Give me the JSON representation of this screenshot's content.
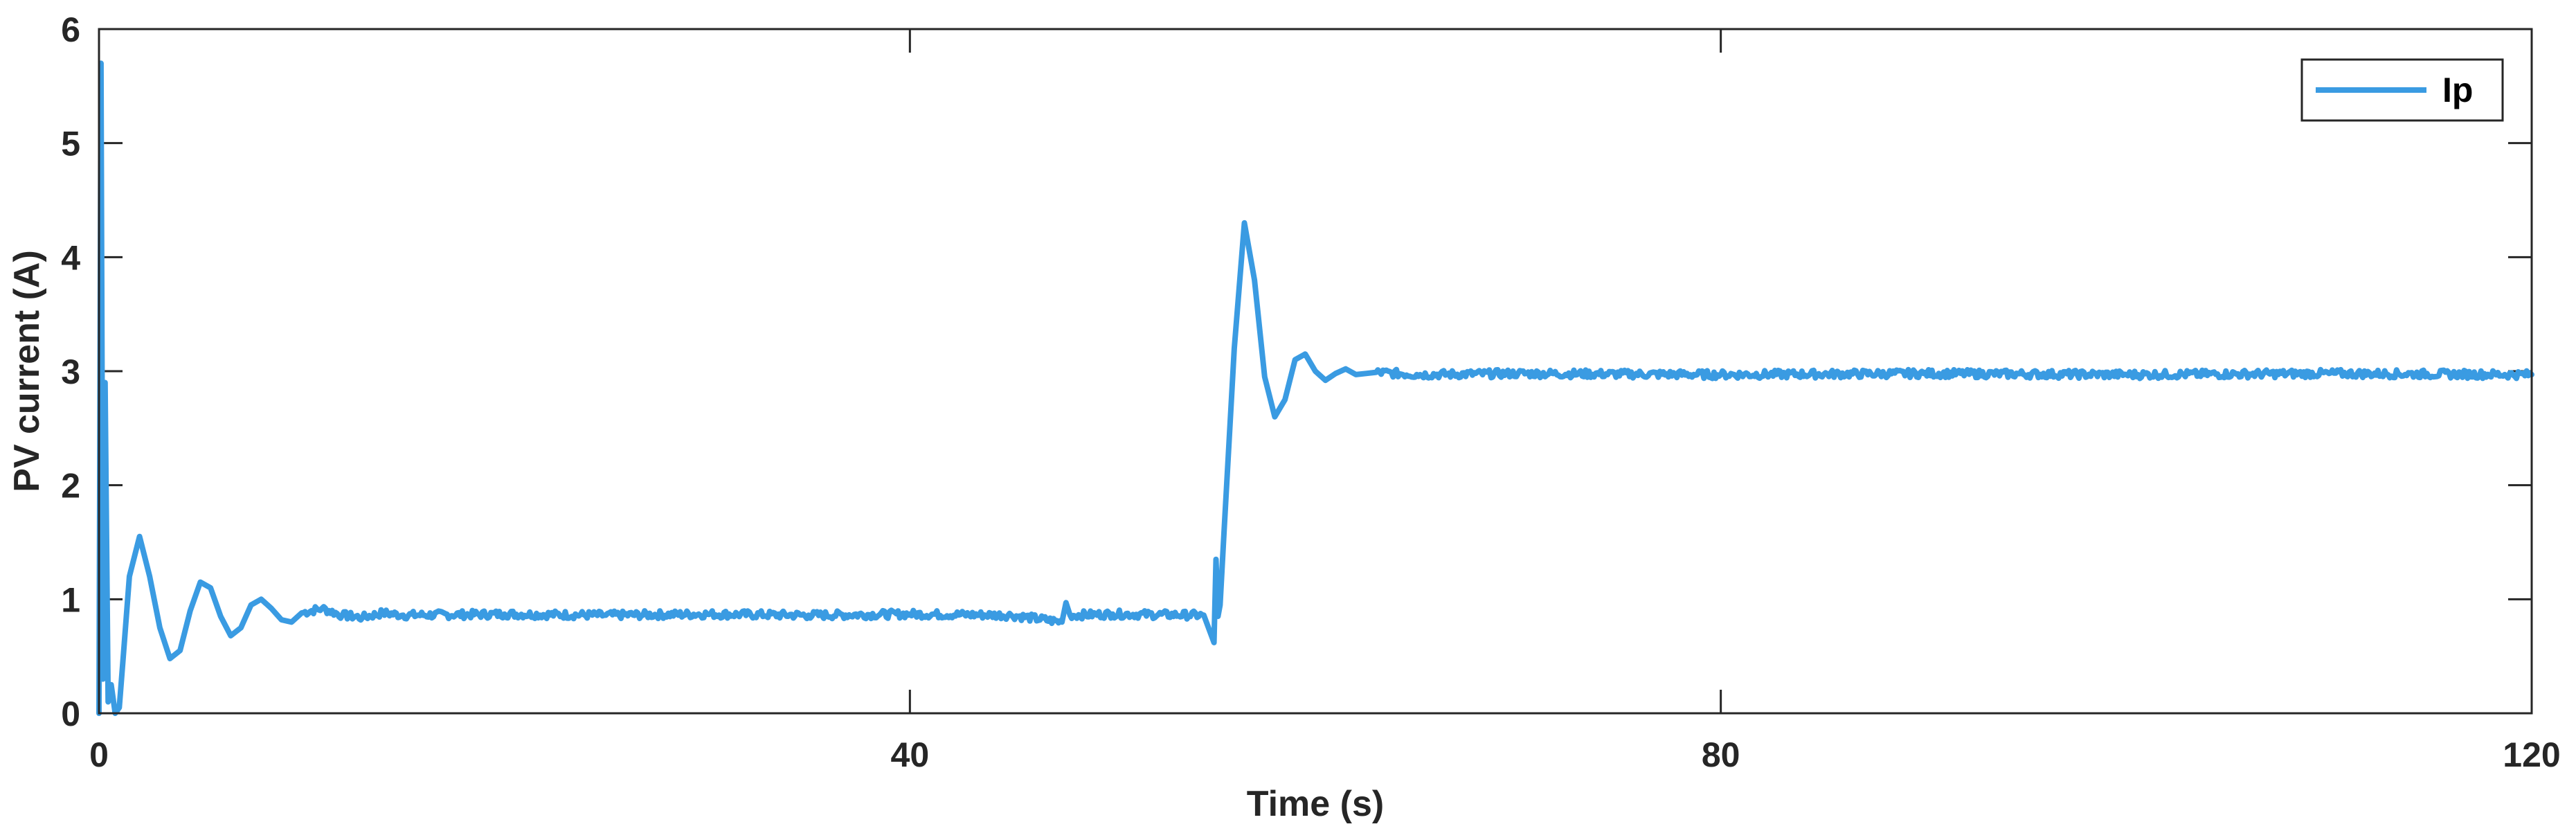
{
  "chart_data": {
    "type": "line",
    "title": "",
    "xlabel": "Time (s)",
    "ylabel": "PV current (A)",
    "xlim": [
      0,
      120
    ],
    "ylim": [
      0,
      6
    ],
    "xticks": [
      0,
      40,
      80,
      120
    ],
    "yticks": [
      0,
      1,
      2,
      3,
      4,
      5,
      6
    ],
    "grid": false,
    "legend_position": "top-right",
    "series": [
      {
        "name": "Ip",
        "color": "#3a9be2",
        "x": [
          0,
          0.1,
          0.2,
          0.3,
          0.45,
          0.6,
          0.8,
          1.0,
          1.2,
          1.5,
          2.0,
          2.5,
          3.0,
          3.5,
          4.0,
          4.5,
          5.0,
          5.5,
          6.0,
          6.5,
          7.0,
          7.5,
          8.0,
          8.5,
          9.0,
          9.5,
          10.0,
          11.0,
          12.0,
          13.0,
          14.0,
          15.0,
          20,
          25,
          30,
          35,
          40,
          45,
          47.5,
          47.7,
          47.9,
          50,
          54.5,
          55.0,
          55.1,
          55.2,
          55.3,
          55.5,
          56.0,
          56.5,
          57.0,
          57.5,
          58.0,
          58.5,
          59.0,
          59.5,
          60.0,
          60.5,
          61.0,
          61.5,
          62.0,
          62.5,
          63.0,
          65,
          70,
          80,
          90,
          100,
          110,
          120
        ],
        "values": [
          0.0,
          5.7,
          0.3,
          2.9,
          0.1,
          0.25,
          0.0,
          0.05,
          0.5,
          1.2,
          1.55,
          1.2,
          0.75,
          0.48,
          0.55,
          0.9,
          1.15,
          1.1,
          0.85,
          0.68,
          0.75,
          0.95,
          1.0,
          0.92,
          0.82,
          0.8,
          0.88,
          0.92,
          0.86,
          0.84,
          0.88,
          0.86,
          0.87,
          0.86,
          0.87,
          0.86,
          0.87,
          0.86,
          0.8,
          0.97,
          0.86,
          0.87,
          0.86,
          0.62,
          1.35,
          0.85,
          0.95,
          1.6,
          3.2,
          4.3,
          3.8,
          2.95,
          2.6,
          2.75,
          3.1,
          3.15,
          3.0,
          2.92,
          2.98,
          3.02,
          2.97,
          2.98,
          2.99,
          2.97,
          2.98,
          2.97,
          2.98,
          2.97,
          2.98,
          2.97
        ]
      }
    ]
  }
}
